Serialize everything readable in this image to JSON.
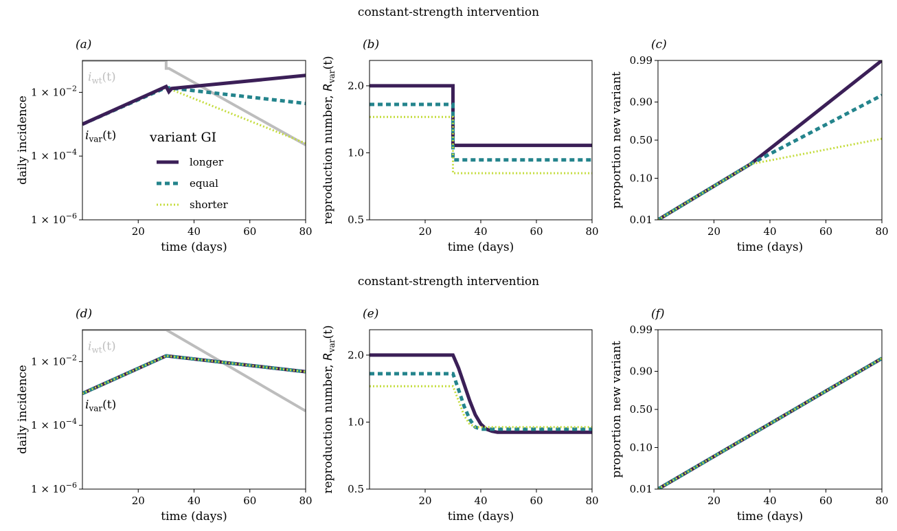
{
  "figure": {
    "row_titles": [
      "constant-strength intervention",
      "constant-strength intervention"
    ]
  },
  "colors": {
    "longer": "#3b1f57",
    "equal": "#24848c",
    "shorter": "#c4dc3c",
    "wildtype": "#bdbdbd"
  },
  "legend": {
    "title": "variant GI",
    "placement": "panel-a-lower-center",
    "entries": [
      "longer",
      "equal",
      "shorter"
    ]
  },
  "chart_data": [
    {
      "panel": "(a)",
      "type": "line",
      "y_scale": "log",
      "xlabel": "time (days)",
      "ylabel": "daily incidence",
      "xlim": [
        0,
        80
      ],
      "ylim_log10": [
        -6,
        -1
      ],
      "xticks": [
        20,
        40,
        60,
        80
      ],
      "xtick_labels": [
        "20",
        "40",
        "60",
        "80"
      ],
      "yticks_log10": [
        -2,
        -4,
        -6
      ],
      "ytick_labels": [
        {
          "base": "1 × 10",
          "exp": "−2"
        },
        {
          "base": "1 × 10",
          "exp": "−4"
        },
        {
          "base": "1 × 10",
          "exp": "−6"
        }
      ],
      "annotations": [
        {
          "main": "i",
          "sub": "wt",
          "arg": "(t)"
        },
        {
          "main": "i",
          "sub": "var",
          "arg": "(t)"
        }
      ],
      "series": [
        {
          "name": "wildtype",
          "x": [
            0,
            30,
            30,
            31,
            80
          ],
          "log10_y": [
            -1,
            -1,
            -1.25,
            -1.25,
            -3.65
          ]
        },
        {
          "name": "shorter",
          "x": [
            0,
            30,
            80
          ],
          "log10_y": [
            -3,
            -1.85,
            -3.6
          ]
        },
        {
          "name": "equal",
          "x": [
            0,
            30,
            80
          ],
          "log10_y": [
            -3,
            -1.85,
            -2.35
          ]
        },
        {
          "name": "longer",
          "x": [
            0,
            30,
            31,
            32,
            80
          ],
          "log10_y": [
            -3,
            -1.82,
            -1.98,
            -1.88,
            -1.47
          ]
        }
      ]
    },
    {
      "panel": "(b)",
      "type": "line",
      "y_scale": "log",
      "xlabel": "time (days)",
      "ylabel": {
        "text": "reproduction number, ",
        "main": "R",
        "sub": "var",
        "arg": "(t)"
      },
      "xlim": [
        0,
        80
      ],
      "ylim": [
        0.5,
        2.6
      ],
      "xticks": [
        20,
        40,
        60,
        80
      ],
      "xtick_labels": [
        "20",
        "40",
        "60",
        "80"
      ],
      "yticks": [
        0.5,
        1.0,
        2.0
      ],
      "ytick_labels": [
        "0.5",
        "1.0",
        "2.0"
      ],
      "series": [
        {
          "name": "longer",
          "x": [
            0,
            30,
            30,
            80
          ],
          "y": [
            2.0,
            2.0,
            1.08,
            1.08
          ]
        },
        {
          "name": "equal",
          "x": [
            0,
            30,
            30,
            80
          ],
          "y": [
            1.65,
            1.65,
            0.93,
            0.93
          ]
        },
        {
          "name": "shorter",
          "x": [
            0,
            30,
            30,
            80
          ],
          "y": [
            1.45,
            1.45,
            0.81,
            0.81
          ]
        }
      ]
    },
    {
      "panel": "(c)",
      "type": "line",
      "y_scale": "logit",
      "xlabel": "time (days)",
      "ylabel": "proportion new variant",
      "xlim": [
        0,
        80
      ],
      "ylim": [
        0.01,
        0.99
      ],
      "xticks": [
        20,
        40,
        60,
        80
      ],
      "xtick_labels": [
        "20",
        "40",
        "60",
        "80"
      ],
      "yticks": [
        0.01,
        0.1,
        0.5,
        0.9,
        0.99
      ],
      "ytick_labels": [
        "0.01",
        "0.10",
        "0.50",
        "0.90",
        "0.99"
      ],
      "series": [
        {
          "name": "longer",
          "x": [
            0,
            33,
            80
          ],
          "y": [
            0.01,
            0.2,
            0.99
          ]
        },
        {
          "name": "equal",
          "x": [
            0,
            33,
            80
          ],
          "y": [
            0.01,
            0.2,
            0.93
          ]
        },
        {
          "name": "shorter",
          "x": [
            0,
            33,
            80
          ],
          "y": [
            0.01,
            0.2,
            0.52
          ]
        }
      ]
    },
    {
      "panel": "(d)",
      "type": "line",
      "y_scale": "log",
      "xlabel": "time (days)",
      "ylabel": "daily incidence",
      "xlim": [
        0,
        80
      ],
      "ylim_log10": [
        -6,
        -1
      ],
      "xticks": [
        20,
        40,
        60,
        80
      ],
      "xtick_labels": [
        "20",
        "40",
        "60",
        "80"
      ],
      "yticks_log10": [
        -2,
        -4,
        -6
      ],
      "ytick_labels": [
        {
          "base": "1 × 10",
          "exp": "−2"
        },
        {
          "base": "1 × 10",
          "exp": "−4"
        },
        {
          "base": "1 × 10",
          "exp": "−6"
        }
      ],
      "annotations": [
        {
          "main": "i",
          "sub": "wt",
          "arg": "(t)"
        },
        {
          "main": "i",
          "sub": "var",
          "arg": "(t)"
        }
      ],
      "series": [
        {
          "name": "wildtype",
          "x": [
            0,
            30,
            80
          ],
          "log10_y": [
            -1,
            -1,
            -3.55
          ]
        },
        {
          "name": "longer",
          "x": [
            0,
            30,
            80
          ],
          "log10_y": [
            -3,
            -1.82,
            -2.32
          ]
        },
        {
          "name": "equal",
          "x": [
            0,
            30,
            80
          ],
          "log10_y": [
            -3,
            -1.82,
            -2.32
          ]
        },
        {
          "name": "shorter",
          "x": [
            0,
            30,
            80
          ],
          "log10_y": [
            -3,
            -1.82,
            -2.32
          ]
        }
      ]
    },
    {
      "panel": "(e)",
      "type": "line",
      "y_scale": "log",
      "xlabel": "time (days)",
      "ylabel": {
        "text": "reproduction number, ",
        "main": "R",
        "sub": "var",
        "arg": "(t)"
      },
      "xlim": [
        0,
        80
      ],
      "ylim": [
        0.5,
        2.6
      ],
      "xticks": [
        20,
        40,
        60,
        80
      ],
      "xtick_labels": [
        "20",
        "40",
        "60",
        "80"
      ],
      "yticks": [
        0.5,
        1.0,
        2.0
      ],
      "ytick_labels": [
        "0.5",
        "1.0",
        "2.0"
      ],
      "series": [
        {
          "name": "longer",
          "x": [
            0,
            30,
            32,
            34,
            36,
            38,
            40,
            42,
            44,
            46,
            50,
            80
          ],
          "y": [
            2.0,
            2.0,
            1.75,
            1.48,
            1.25,
            1.08,
            0.98,
            0.93,
            0.91,
            0.9,
            0.9,
            0.9
          ]
        },
        {
          "name": "equal",
          "x": [
            0,
            30,
            32,
            34,
            36,
            38,
            40,
            80
          ],
          "y": [
            1.65,
            1.65,
            1.4,
            1.18,
            1.03,
            0.95,
            0.93,
            0.93
          ]
        },
        {
          "name": "shorter",
          "x": [
            0,
            30,
            32,
            34,
            36,
            38,
            80
          ],
          "y": [
            1.45,
            1.45,
            1.25,
            1.07,
            0.98,
            0.95,
            0.95
          ]
        }
      ]
    },
    {
      "panel": "(f)",
      "type": "line",
      "y_scale": "logit",
      "xlabel": "time (days)",
      "ylabel": "proportion new variant",
      "xlim": [
        0,
        80
      ],
      "ylim": [
        0.01,
        0.99
      ],
      "xticks": [
        20,
        40,
        60,
        80
      ],
      "xtick_labels": [
        "20",
        "40",
        "60",
        "80"
      ],
      "yticks": [
        0.01,
        0.1,
        0.5,
        0.9,
        0.99
      ],
      "ytick_labels": [
        "0.01",
        "0.10",
        "0.50",
        "0.90",
        "0.99"
      ],
      "series": [
        {
          "name": "longer",
          "x": [
            0,
            80
          ],
          "y": [
            0.01,
            0.95
          ]
        },
        {
          "name": "equal",
          "x": [
            0,
            80
          ],
          "y": [
            0.01,
            0.95
          ]
        },
        {
          "name": "shorter",
          "x": [
            0,
            80
          ],
          "y": [
            0.01,
            0.95
          ]
        }
      ]
    }
  ]
}
